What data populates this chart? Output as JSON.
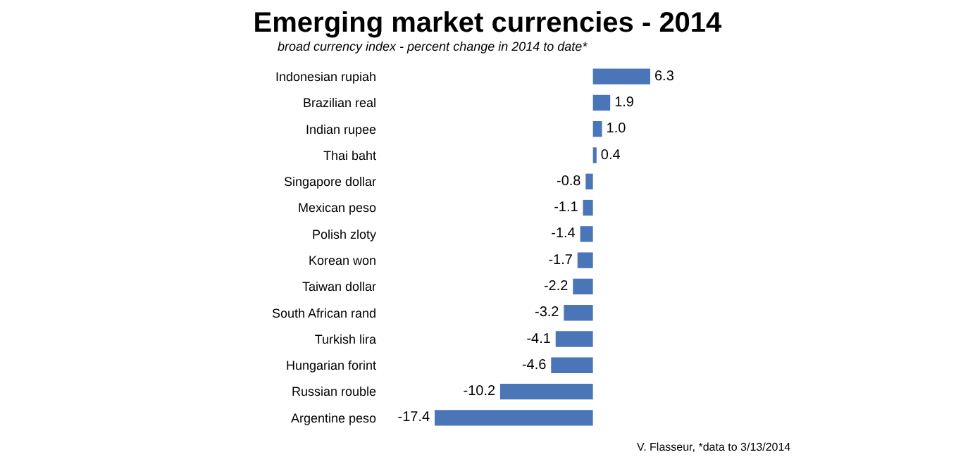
{
  "chart_data": {
    "type": "bar",
    "orientation": "horizontal",
    "title": "Emerging market currencies - 2014",
    "subtitle": "broad currency index - percent change in 2014 to date*",
    "categories": [
      "Indonesian rupiah",
      "Brazilian real",
      "Indian rupee",
      "Thai baht",
      "Singapore dollar",
      "Mexican peso",
      "Polish zloty",
      "Korean won",
      "Taiwan dollar",
      "South African rand",
      "Turkish lira",
      "Hungarian forint",
      "Russian rouble",
      "Argentine peso"
    ],
    "values": [
      6.3,
      1.9,
      1.0,
      0.4,
      -0.8,
      -1.1,
      -1.4,
      -1.7,
      -2.2,
      -3.2,
      -4.1,
      -4.6,
      -10.2,
      -17.4
    ],
    "value_labels": [
      "6.3",
      "1.9",
      "1.0",
      "0.4",
      "-0.8",
      "-1.1",
      "-1.4",
      "-1.7",
      "-2.2",
      "-3.2",
      "-4.1",
      "-4.6",
      "-10.2",
      "-17.4"
    ],
    "color": "#4a76b8",
    "annotations": [
      "V. Flasseur, *data to 3/13/2014"
    ]
  }
}
